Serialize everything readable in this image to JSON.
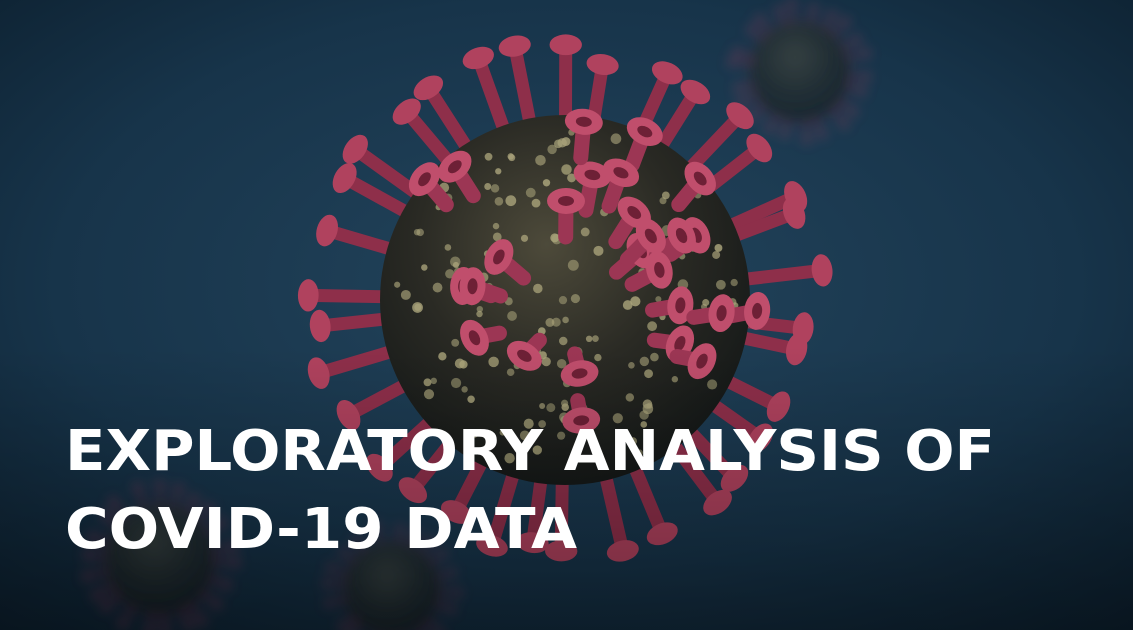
{
  "title": {
    "lines": [
      "EXPLORATORY ANALYSIS OF",
      "COVID-19 DATA"
    ]
  }
}
